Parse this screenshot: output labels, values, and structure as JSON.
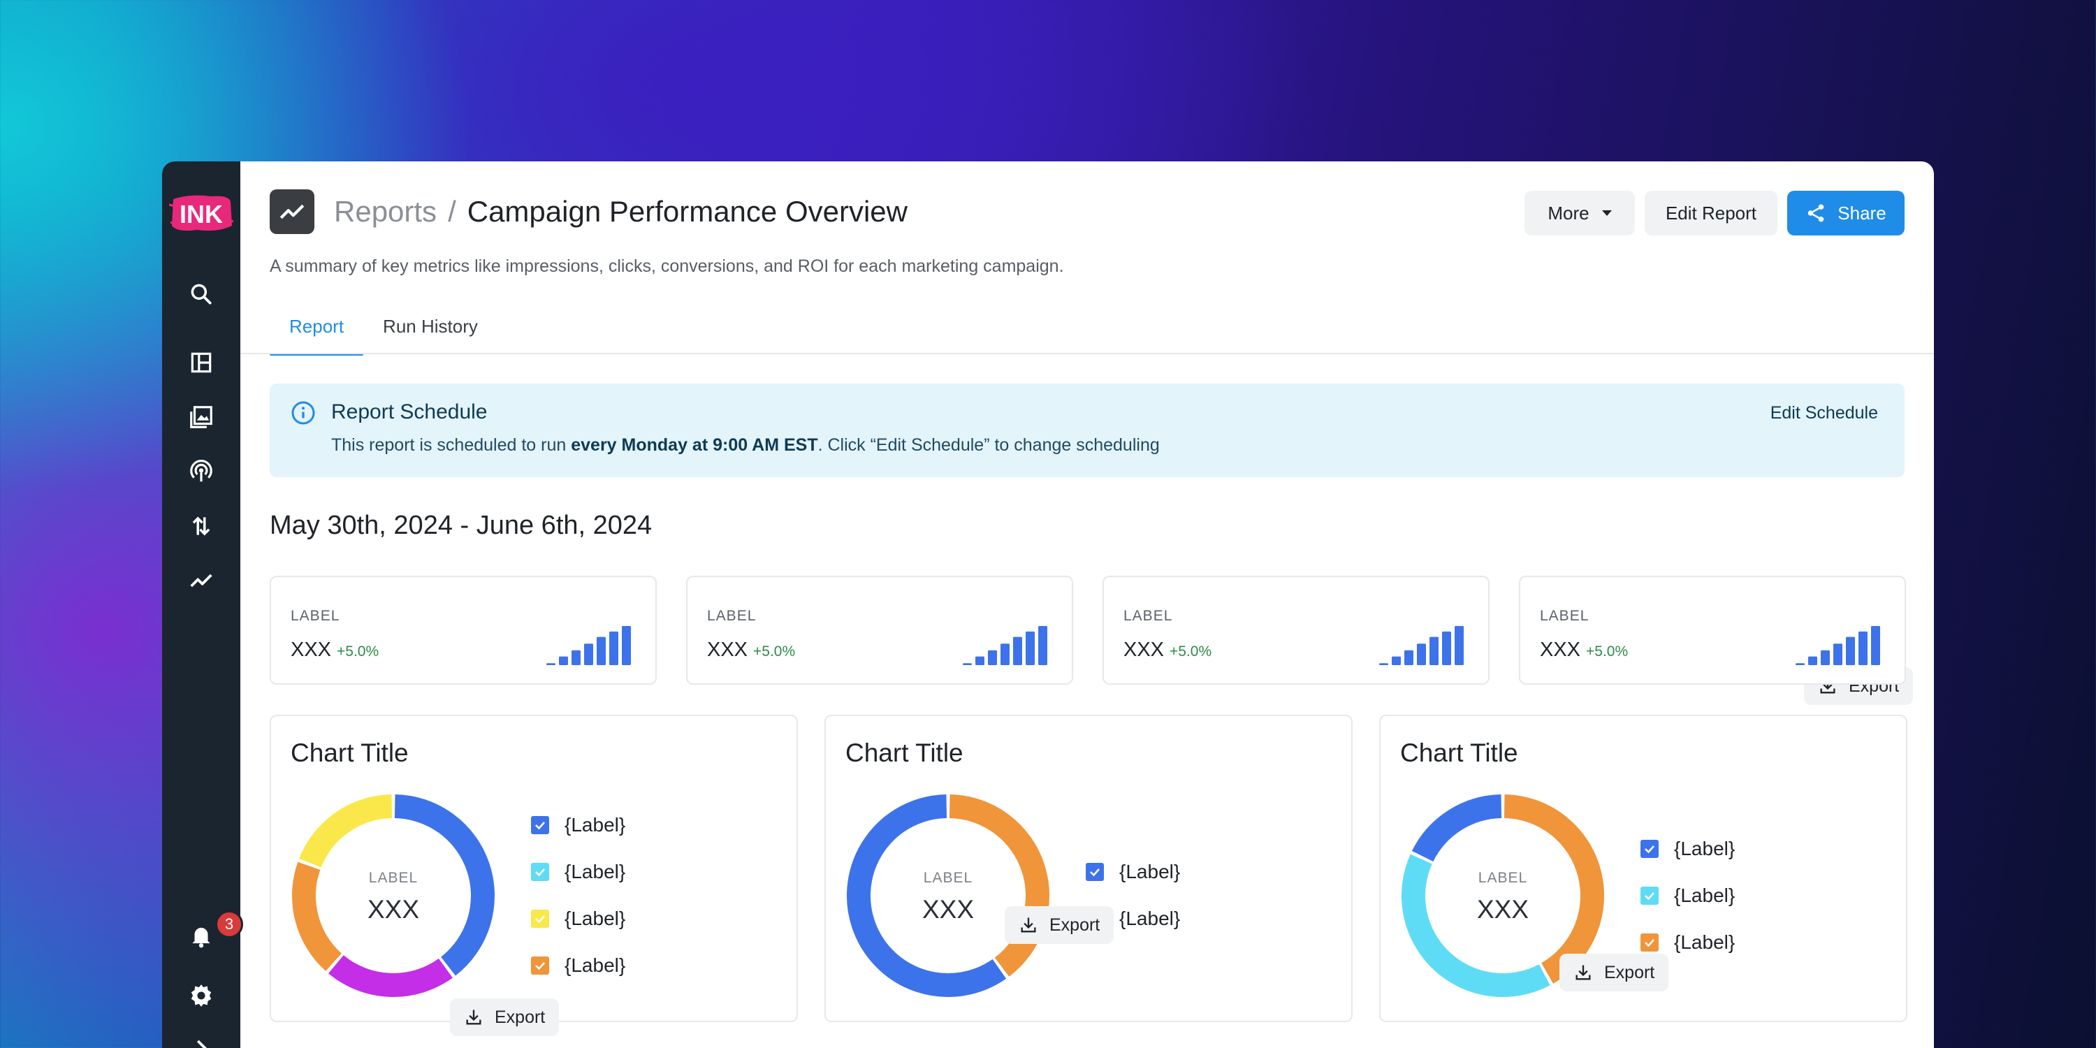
{
  "sidebar": {
    "logo_text": "INK",
    "notification_count": "3",
    "icons": [
      "search-icon",
      "layout-icon",
      "image-icon",
      "podcast-icon",
      "transfer-icon",
      "trend-icon",
      "bell-icon",
      "gear-icon",
      "chevron-right-icon"
    ]
  },
  "header": {
    "breadcrumb_parent": "Reports",
    "breadcrumb_separator": "/",
    "title": "Campaign Performance Overview",
    "subtitle": "A summary of key metrics like impressions, clicks, conversions, and ROI for each marketing campaign.",
    "more_label": "More",
    "edit_label": "Edit Report",
    "share_label": "Share"
  },
  "tabs": [
    {
      "label": "Report",
      "active": true
    },
    {
      "label": "Run History",
      "active": false
    }
  ],
  "banner": {
    "title": "Report Schedule",
    "text_before": "This report is scheduled to run ",
    "text_bold": "every Monday at 9:00 AM EST",
    "text_after": ". Click “Edit Schedule” to change scheduling",
    "edit_label": "Edit Schedule"
  },
  "date_range": "May 30th, 2024 - June 6th, 2024",
  "export_label": "Export",
  "kpis": [
    {
      "label": "LABEL",
      "value": "XXX",
      "delta": "+5.0%"
    },
    {
      "label": "LABEL",
      "value": "XXX",
      "delta": "+5.0%"
    },
    {
      "label": "LABEL",
      "value": "XXX",
      "delta": "+5.0%"
    },
    {
      "label": "LABEL",
      "value": "XXX",
      "delta": "+5.0%"
    }
  ],
  "spark_levels": [
    0.05,
    0.22,
    0.38,
    0.55,
    0.72,
    0.86,
    1.0
  ],
  "colors": {
    "accent": "#1f8ce8",
    "bar_blue": "#3d73ea",
    "purple": "#c42ee6",
    "orange": "#f0953a",
    "yellow": "#fae84a",
    "cyan": "#5fdcf5",
    "positive": "#2e8a4a"
  },
  "charts": [
    {
      "title": "Chart Title",
      "center_label": "LABEL",
      "center_value": "XXX",
      "segments": [
        {
          "color": "#3d73ea",
          "value": 35
        },
        {
          "color": "#c42ee6",
          "value": 19
        },
        {
          "color": "#f0953a",
          "value": 17
        },
        {
          "color": "#fae84a",
          "value": 17
        }
      ],
      "legend": [
        {
          "label": "{Label}",
          "color": "#3d73ea"
        },
        {
          "label": "{Label}",
          "color": "#5fdcf5"
        },
        {
          "label": "{Label}",
          "color": "#fae84a"
        },
        {
          "label": "{Label}",
          "color": "#f0953a"
        }
      ],
      "export_label": "Export"
    },
    {
      "title": "Chart Title",
      "center_label": "LABEL",
      "center_value": "XXX",
      "segments": [
        {
          "color": "#f0953a",
          "value": 40
        },
        {
          "color": "#3d73ea",
          "value": 60
        }
      ],
      "legend": [
        {
          "label": "{Label}",
          "color": "#3d73ea"
        },
        {
          "label": "{Label}",
          "color": "#f0953a"
        }
      ],
      "export_label": "Export"
    },
    {
      "title": "Chart Title",
      "center_label": "LABEL",
      "center_value": "XXX",
      "segments": [
        {
          "color": "#f0953a",
          "value": 42
        },
        {
          "color": "#5fdcf5",
          "value": 40
        },
        {
          "color": "#3d73ea",
          "value": 18
        }
      ],
      "legend": [
        {
          "label": "{Label}",
          "color": "#3d73ea"
        },
        {
          "label": "{Label}",
          "color": "#5fdcf5"
        },
        {
          "label": "{Label}",
          "color": "#f0953a"
        }
      ],
      "export_label": "Export"
    }
  ]
}
